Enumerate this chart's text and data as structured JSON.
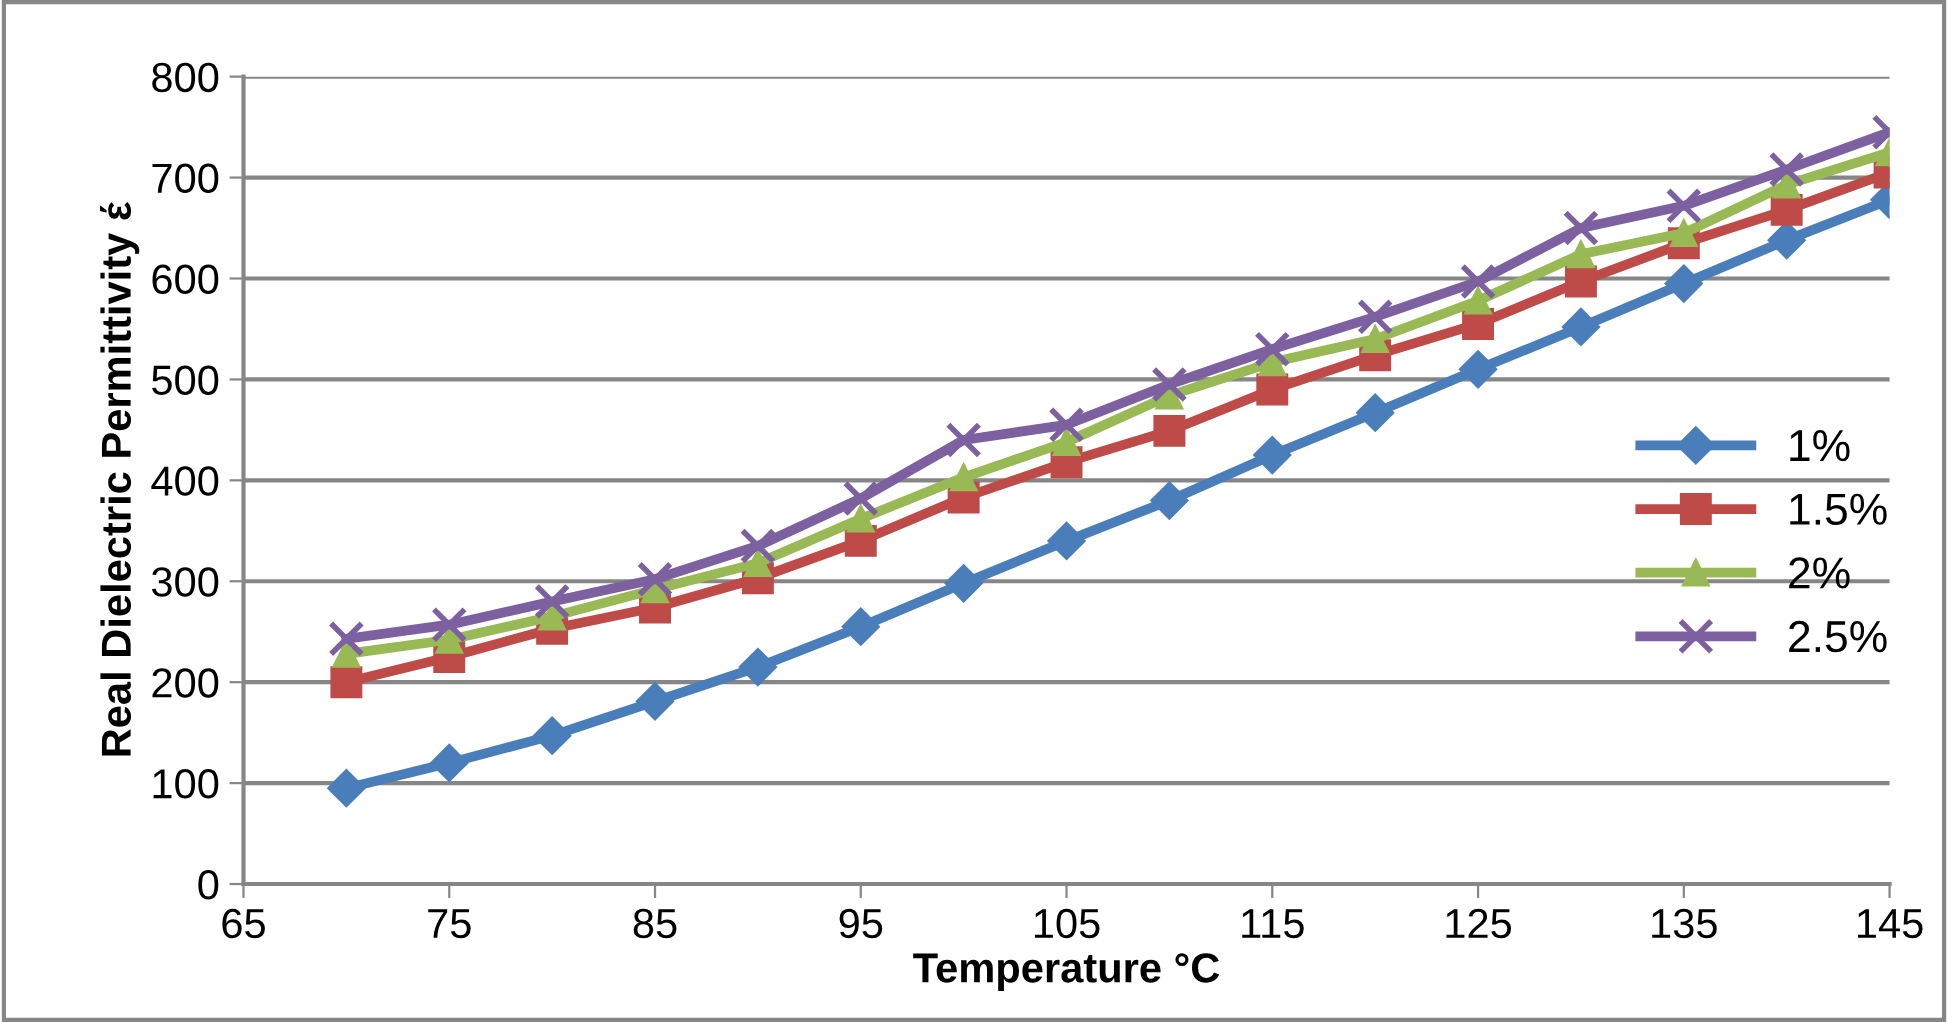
{
  "chart_data": {
    "type": "line",
    "xlabel": "Temperature °C",
    "ylabel": "Real Dielectric Permittivity έ",
    "x": [
      70,
      75,
      80,
      85,
      90,
      95,
      100,
      105,
      110,
      115,
      120,
      125,
      130,
      135,
      140,
      145
    ],
    "series": [
      {
        "name": "1%",
        "color": "#4a7ebb",
        "marker": "diamond",
        "values": [
          95,
          120,
          147,
          181,
          215,
          255,
          298,
          340,
          380,
          425,
          467,
          510,
          552,
          595,
          638,
          678
        ]
      },
      {
        "name": "1.5%",
        "color": "#be4b48",
        "marker": "square",
        "values": [
          200,
          225,
          253,
          274,
          303,
          340,
          383,
          418,
          449,
          490,
          524,
          555,
          597,
          635,
          668,
          705
        ]
      },
      {
        "name": "2%",
        "color": "#98b954",
        "marker": "triangle",
        "values": [
          228,
          242,
          265,
          292,
          318,
          362,
          403,
          438,
          484,
          517,
          540,
          578,
          624,
          645,
          693,
          725
        ]
      },
      {
        "name": "2.5%",
        "color": "#7d60a0",
        "marker": "cross",
        "values": [
          243,
          257,
          280,
          302,
          335,
          382,
          440,
          455,
          495,
          530,
          562,
          597,
          650,
          672,
          708,
          745
        ]
      }
    ],
    "xlim": [
      65,
      145
    ],
    "xticks": [
      65,
      75,
      85,
      95,
      105,
      115,
      125,
      135,
      145
    ],
    "ylim": [
      0,
      800
    ],
    "yticks": [
      0,
      100,
      200,
      300,
      400,
      500,
      600,
      700,
      800
    ],
    "grid": "y",
    "legend": "right",
    "line_style": "solid"
  }
}
